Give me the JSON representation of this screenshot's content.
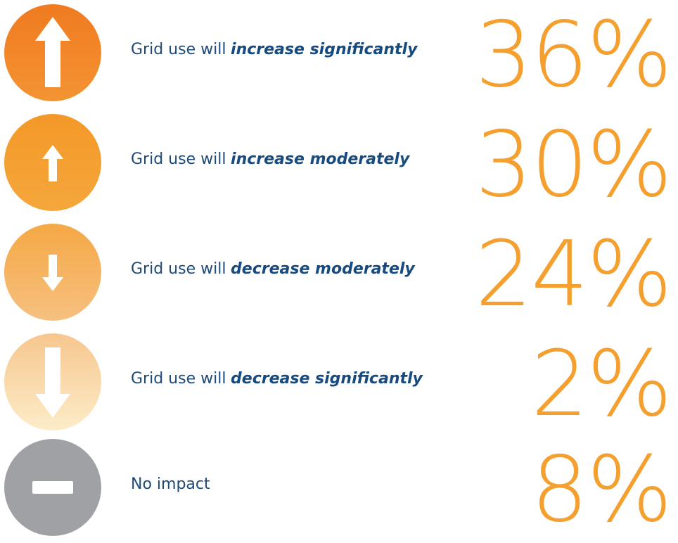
{
  "items": [
    {
      "prefix": "Grid use will",
      "emphasis": "increase significantly",
      "value": "36%"
    },
    {
      "prefix": "Grid use will",
      "emphasis": "increase moderately",
      "value": "30%"
    },
    {
      "prefix": "Grid use will",
      "emphasis": "decrease moderately",
      "value": "24%"
    },
    {
      "prefix": "Grid use will",
      "emphasis": "decrease significantly",
      "value": "2%"
    },
    {
      "prefix": "No impact",
      "value": "8%"
    }
  ]
}
